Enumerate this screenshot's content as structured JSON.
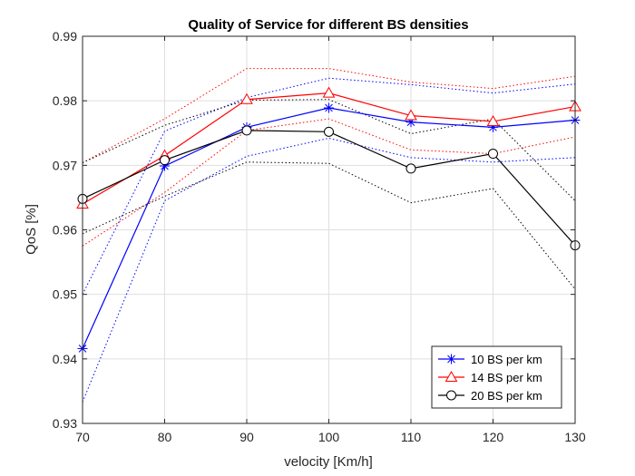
{
  "chart_data": {
    "type": "line",
    "title": "Quality of Service for different BS densities",
    "xlabel": "velocity [Km/h]",
    "ylabel": "QoS [%]",
    "x": [
      70,
      80,
      90,
      100,
      110,
      120,
      130
    ],
    "xlim": [
      70,
      130
    ],
    "ylim": [
      0.93,
      0.99
    ],
    "xticks": [
      "70",
      "80",
      "90",
      "100",
      "110",
      "120",
      "130"
    ],
    "yticks": [
      "0.93",
      "0.94",
      "0.95",
      "0.96",
      "0.97",
      "0.98",
      "0.99"
    ],
    "grid": true,
    "legend_position": "bottom-right",
    "series": [
      {
        "name": "10 BS per km",
        "color": "#0000ff",
        "marker": "asterisk",
        "values": [
          0.9416,
          0.9699,
          0.9759,
          0.9789,
          0.9767,
          0.9759,
          0.977
        ],
        "upper": [
          0.95,
          0.9753,
          0.9805,
          0.9835,
          0.9825,
          0.9812,
          0.9826
        ],
        "lower": [
          0.9333,
          0.9645,
          0.9714,
          0.9742,
          0.9712,
          0.9705,
          0.9712
        ]
      },
      {
        "name": "14 BS per km",
        "color": "#ff0000",
        "marker": "triangle",
        "values": [
          0.964,
          0.9715,
          0.9802,
          0.9812,
          0.9777,
          0.9768,
          0.9791
        ],
        "upper": [
          0.9704,
          0.9772,
          0.985,
          0.985,
          0.9829,
          0.9819,
          0.9838
        ],
        "lower": [
          0.9575,
          0.9658,
          0.9754,
          0.9772,
          0.9724,
          0.9718,
          0.9744
        ]
      },
      {
        "name": "20 BS per km",
        "color": "#000000",
        "marker": "circle",
        "values": [
          0.9648,
          0.9708,
          0.9754,
          0.9752,
          0.9695,
          0.9718,
          0.9576
        ],
        "upper": [
          0.9704,
          0.9762,
          0.9801,
          0.9802,
          0.9749,
          0.9772,
          0.9645
        ],
        "lower": [
          0.9594,
          0.9652,
          0.9705,
          0.9703,
          0.9642,
          0.9664,
          0.9508
        ]
      }
    ]
  }
}
